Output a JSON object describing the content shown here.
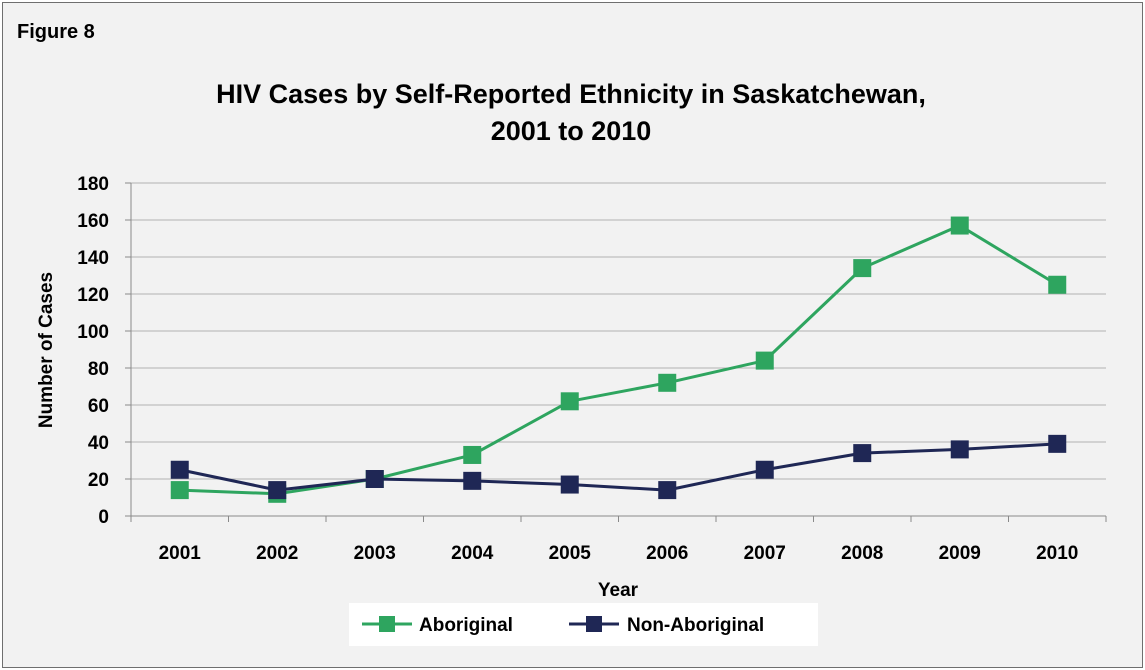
{
  "figure_label": "Figure 8",
  "chart_data": {
    "type": "line",
    "title": "HIV Cases by Self-Reported Ethnicity in Saskatchewan,",
    "subtitle": "2001 to 2010",
    "xlabel": "Year",
    "ylabel": "Number of Cases",
    "categories": [
      "2001",
      "2002",
      "2003",
      "2004",
      "2005",
      "2006",
      "2007",
      "2008",
      "2009",
      "2010"
    ],
    "ylim": [
      0,
      180
    ],
    "yticks": [
      "0",
      "20",
      "40",
      "60",
      "80",
      "100",
      "120",
      "140",
      "160",
      "180"
    ],
    "grid": true,
    "legend_position": "bottom",
    "series": [
      {
        "name": "Aboriginal",
        "color": "#2ea55f",
        "values": [
          14,
          12,
          20,
          33,
          62,
          72,
          84,
          134,
          157,
          125
        ]
      },
      {
        "name": "Non-Aboriginal",
        "color": "#1f2755",
        "values": [
          25,
          14,
          20,
          19,
          17,
          14,
          25,
          34,
          36,
          39
        ]
      }
    ]
  }
}
